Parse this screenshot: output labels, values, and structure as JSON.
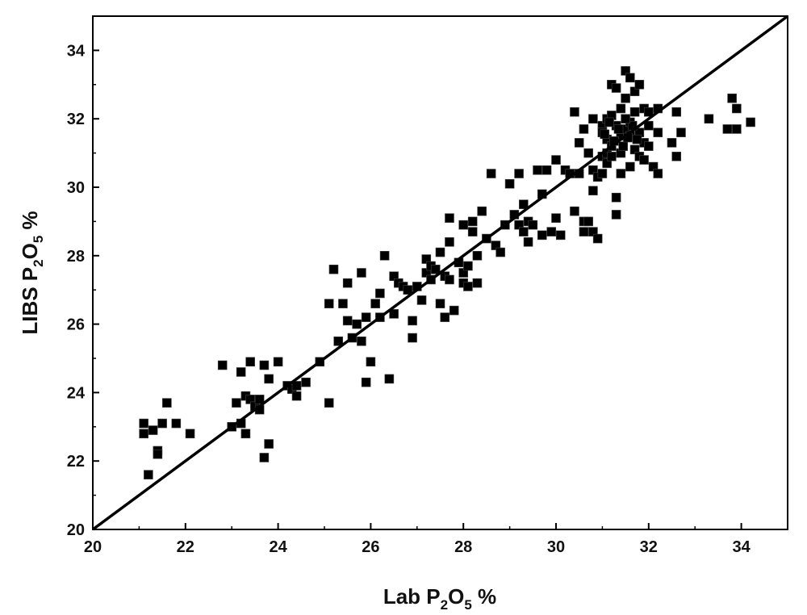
{
  "chart_data": {
    "type": "scatter",
    "xlabel": {
      "text": "Lab P",
      "sub1": "2",
      "mid": "O",
      "sub2": "5",
      "tail": " %"
    },
    "ylabel": {
      "text": "LIBS P",
      "sub1": "2",
      "mid": "O",
      "sub2": "5",
      "tail": " %"
    },
    "xlim": [
      20,
      35
    ],
    "ylim": [
      20,
      35
    ],
    "x_ticks": [
      20,
      22,
      24,
      26,
      28,
      30,
      32,
      34
    ],
    "y_ticks": [
      20,
      22,
      24,
      26,
      28,
      30,
      32,
      34
    ],
    "grid": false,
    "legend": "none",
    "marker": "square",
    "marker_color": "#000000",
    "reference_line": {
      "from": [
        20,
        20
      ],
      "to": [
        35,
        35
      ],
      "color": "#000000"
    },
    "points": [
      [
        21.1,
        23.1
      ],
      [
        21.1,
        22.8
      ],
      [
        21.3,
        22.9
      ],
      [
        21.2,
        21.6
      ],
      [
        21.4,
        22.3
      ],
      [
        21.4,
        22.2
      ],
      [
        21.5,
        23.1
      ],
      [
        21.6,
        23.7
      ],
      [
        21.8,
        23.1
      ],
      [
        22.1,
        22.8
      ],
      [
        22.8,
        24.8
      ],
      [
        23.0,
        23.0
      ],
      [
        23.1,
        23.7
      ],
      [
        23.2,
        24.6
      ],
      [
        23.2,
        23.1
      ],
      [
        23.3,
        23.9
      ],
      [
        23.3,
        22.8
      ],
      [
        23.4,
        24.9
      ],
      [
        23.4,
        23.8
      ],
      [
        23.5,
        23.6
      ],
      [
        23.6,
        23.5
      ],
      [
        23.6,
        23.8
      ],
      [
        23.7,
        22.1
      ],
      [
        23.7,
        24.8
      ],
      [
        23.8,
        24.4
      ],
      [
        23.8,
        22.5
      ],
      [
        24.0,
        24.9
      ],
      [
        24.2,
        24.2
      ],
      [
        24.3,
        24.1
      ],
      [
        24.4,
        23.9
      ],
      [
        24.4,
        24.2
      ],
      [
        24.6,
        24.3
      ],
      [
        24.9,
        24.9
      ],
      [
        25.1,
        23.7
      ],
      [
        25.1,
        26.6
      ],
      [
        25.2,
        27.6
      ],
      [
        25.3,
        25.5
      ],
      [
        25.4,
        26.6
      ],
      [
        25.5,
        27.2
      ],
      [
        25.5,
        26.1
      ],
      [
        25.6,
        25.6
      ],
      [
        25.7,
        26.0
      ],
      [
        25.8,
        27.5
      ],
      [
        25.8,
        25.5
      ],
      [
        25.9,
        24.3
      ],
      [
        25.9,
        26.2
      ],
      [
        26.0,
        24.9
      ],
      [
        26.1,
        26.6
      ],
      [
        26.2,
        26.9
      ],
      [
        26.2,
        26.2
      ],
      [
        26.3,
        28.0
      ],
      [
        26.4,
        24.4
      ],
      [
        26.5,
        27.4
      ],
      [
        26.5,
        26.3
      ],
      [
        26.6,
        27.2
      ],
      [
        26.7,
        27.1
      ],
      [
        26.8,
        27.0
      ],
      [
        26.9,
        25.6
      ],
      [
        26.9,
        26.1
      ],
      [
        27.0,
        27.1
      ],
      [
        27.1,
        26.7
      ],
      [
        27.2,
        27.9
      ],
      [
        27.2,
        27.5
      ],
      [
        27.3,
        27.7
      ],
      [
        27.3,
        27.3
      ],
      [
        27.4,
        27.6
      ],
      [
        27.5,
        28.1
      ],
      [
        27.5,
        26.6
      ],
      [
        27.6,
        27.4
      ],
      [
        27.6,
        26.2
      ],
      [
        27.7,
        28.4
      ],
      [
        27.7,
        27.3
      ],
      [
        27.7,
        29.1
      ],
      [
        27.8,
        26.4
      ],
      [
        27.9,
        27.8
      ],
      [
        28.0,
        27.2
      ],
      [
        28.0,
        27.5
      ],
      [
        28.0,
        28.9
      ],
      [
        28.1,
        27.7
      ],
      [
        28.1,
        27.1
      ],
      [
        28.2,
        28.7
      ],
      [
        28.2,
        29.0
      ],
      [
        28.3,
        27.2
      ],
      [
        28.3,
        28.0
      ],
      [
        28.4,
        29.3
      ],
      [
        28.5,
        28.5
      ],
      [
        28.6,
        30.4
      ],
      [
        28.7,
        28.3
      ],
      [
        28.8,
        28.1
      ],
      [
        28.9,
        28.9
      ],
      [
        29.0,
        30.1
      ],
      [
        29.1,
        29.2
      ],
      [
        29.2,
        28.9
      ],
      [
        29.2,
        30.4
      ],
      [
        29.3,
        29.5
      ],
      [
        29.3,
        28.7
      ],
      [
        29.4,
        29.0
      ],
      [
        29.4,
        28.4
      ],
      [
        29.5,
        28.9
      ],
      [
        29.6,
        30.5
      ],
      [
        29.7,
        29.8
      ],
      [
        29.7,
        28.6
      ],
      [
        29.8,
        30.5
      ],
      [
        29.9,
        28.7
      ],
      [
        30.0,
        30.8
      ],
      [
        30.0,
        29.1
      ],
      [
        30.1,
        28.6
      ],
      [
        30.2,
        30.5
      ],
      [
        30.3,
        30.4
      ],
      [
        30.4,
        29.3
      ],
      [
        30.4,
        32.2
      ],
      [
        30.5,
        31.3
      ],
      [
        30.5,
        30.4
      ],
      [
        30.6,
        29.0
      ],
      [
        30.6,
        31.7
      ],
      [
        30.6,
        28.7
      ],
      [
        30.7,
        31.0
      ],
      [
        30.7,
        29.0
      ],
      [
        30.8,
        29.9
      ],
      [
        30.8,
        30.5
      ],
      [
        30.8,
        28.7
      ],
      [
        30.8,
        32.0
      ],
      [
        30.9,
        28.5
      ],
      [
        30.9,
        30.3
      ],
      [
        31.0,
        31.8
      ],
      [
        31.0,
        30.9
      ],
      [
        31.0,
        30.4
      ],
      [
        31.0,
        31.6
      ],
      [
        31.1,
        32.0
      ],
      [
        31.1,
        31.4
      ],
      [
        31.1,
        31.0
      ],
      [
        31.1,
        30.7
      ],
      [
        31.2,
        32.1
      ],
      [
        31.2,
        33.0
      ],
      [
        31.2,
        31.2
      ],
      [
        31.3,
        31.8
      ],
      [
        31.3,
        29.7
      ],
      [
        31.3,
        29.2
      ],
      [
        31.3,
        32.9
      ],
      [
        31.4,
        31.5
      ],
      [
        31.4,
        30.4
      ],
      [
        31.4,
        31.0
      ],
      [
        31.4,
        32.3
      ],
      [
        31.5,
        33.4
      ],
      [
        31.5,
        31.7
      ],
      [
        31.5,
        32.6
      ],
      [
        31.6,
        31.9
      ],
      [
        31.6,
        30.6
      ],
      [
        31.6,
        31.5
      ],
      [
        31.6,
        33.2
      ],
      [
        31.7,
        32.2
      ],
      [
        31.7,
        31.1
      ],
      [
        31.7,
        32.8
      ],
      [
        31.8,
        31.6
      ],
      [
        31.8,
        30.9
      ],
      [
        31.8,
        33.0
      ],
      [
        31.9,
        31.3
      ],
      [
        31.9,
        32.3
      ],
      [
        31.9,
        30.8
      ],
      [
        32.0,
        31.8
      ],
      [
        32.0,
        32.2
      ],
      [
        32.0,
        31.2
      ],
      [
        32.1,
        30.6
      ],
      [
        32.2,
        31.6
      ],
      [
        32.2,
        30.4
      ],
      [
        32.2,
        32.3
      ],
      [
        32.5,
        31.3
      ],
      [
        32.6,
        32.2
      ],
      [
        32.6,
        30.9
      ],
      [
        32.7,
        31.6
      ],
      [
        33.3,
        32.0
      ],
      [
        33.7,
        31.7
      ],
      [
        33.8,
        32.6
      ],
      [
        33.9,
        32.3
      ],
      [
        33.9,
        31.7
      ],
      [
        34.2,
        31.9
      ],
      [
        31.05,
        31.55
      ],
      [
        31.15,
        31.9
      ],
      [
        31.25,
        31.35
      ],
      [
        31.35,
        31.7
      ],
      [
        31.45,
        31.2
      ],
      [
        31.55,
        31.45
      ],
      [
        31.65,
        31.8
      ],
      [
        31.75,
        31.4
      ],
      [
        31.2,
        30.9
      ],
      [
        31.5,
        32.0
      ]
    ]
  }
}
